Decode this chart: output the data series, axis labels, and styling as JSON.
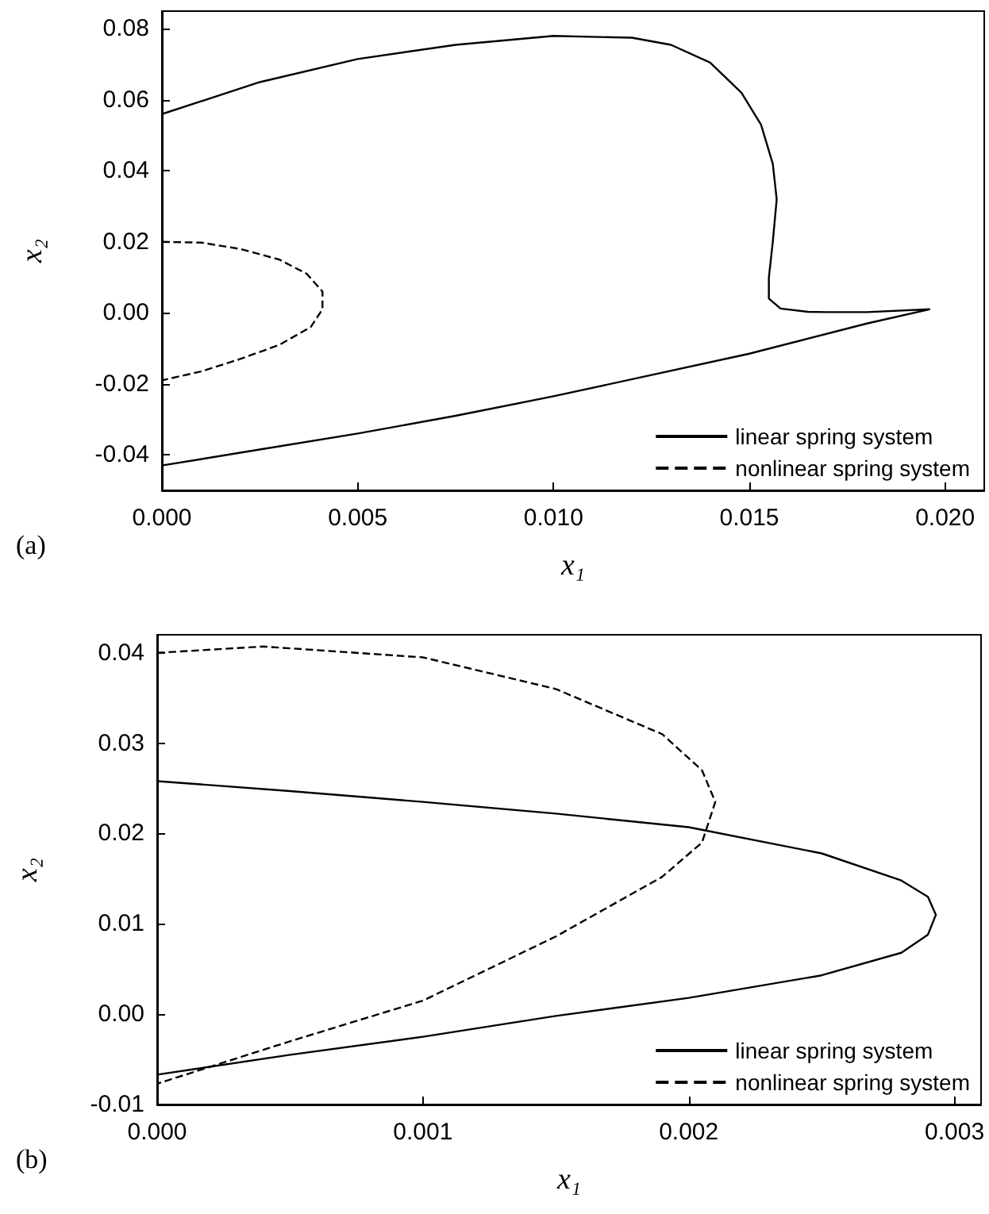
{
  "chart_data": [
    {
      "type": "line",
      "xlabel": "x₁",
      "ylabel": "x₂",
      "annotations": [
        "(a)"
      ],
      "legend": "bottom right",
      "grid": false,
      "marker": "none",
      "xlim": [
        0,
        0.021
      ],
      "xticks": [
        {
          "value": 0,
          "label": "0.000"
        },
        {
          "value": 0.005,
          "label": "0.005"
        },
        {
          "value": 0.01,
          "label": "0.010"
        },
        {
          "value": 0.015,
          "label": "0.015"
        },
        {
          "value": 0.02,
          "label": "0.020"
        }
      ],
      "ylim": [
        -0.05,
        0.085
      ],
      "yticks": [
        {
          "value": -0.04,
          "label": "-0.04"
        },
        {
          "value": -0.02,
          "label": "-0.02"
        },
        {
          "value": 0,
          "label": "0.00"
        },
        {
          "value": 0.02,
          "label": "0.02"
        },
        {
          "value": 0.04,
          "label": "0.04"
        },
        {
          "value": 0.06,
          "label": "0.06"
        },
        {
          "value": 0.08,
          "label": "0.08"
        }
      ],
      "series": [
        {
          "name": "linear spring system",
          "color": "#000000",
          "line_style": "solid",
          "x": [
            0,
            0.0025,
            0.005,
            0.0075,
            0.01,
            0.012,
            0.013,
            0.014,
            0.0148,
            0.0153,
            0.0156,
            0.0157,
            0.0156,
            0.0155,
            0.0155,
            0.0158,
            0.0165,
            0.017,
            0.018,
            0.0196,
            0.018,
            0.015,
            0.0125,
            0.01,
            0.0075,
            0.005,
            0.0025,
            0
          ],
          "values": [
            0.056,
            0.065,
            0.0715,
            0.0755,
            0.078,
            0.0775,
            0.0755,
            0.0705,
            0.062,
            0.053,
            0.042,
            0.032,
            0.02,
            0.01,
            0.004,
            0.0012,
            0.0003,
            0.0002,
            0.0002,
            0.001,
            -0.003,
            -0.0115,
            -0.0175,
            -0.0235,
            -0.029,
            -0.034,
            -0.0385,
            -0.043
          ]
        },
        {
          "name": "nonlinear spring system",
          "color": "#000000",
          "line_style": "dashed",
          "x": [
            0,
            0.001,
            0.002,
            0.003,
            0.0037,
            0.0041,
            0.0041,
            0.0038,
            0.003,
            0.002,
            0.001,
            0
          ],
          "values": [
            0.02,
            0.0198,
            0.018,
            0.015,
            0.011,
            0.006,
            0.001,
            -0.004,
            -0.009,
            -0.013,
            -0.0165,
            -0.019
          ]
        }
      ]
    },
    {
      "type": "line",
      "xlabel": "x₁",
      "ylabel": "x₂",
      "annotations": [
        "(b)"
      ],
      "legend": "bottom right",
      "grid": false,
      "marker": "none",
      "xlim": [
        0,
        0.0031
      ],
      "xticks": [
        {
          "value": 0,
          "label": "0.000"
        },
        {
          "value": 0.001,
          "label": "0.001"
        },
        {
          "value": 0.002,
          "label": "0.002"
        },
        {
          "value": 0.003,
          "label": "0.003"
        }
      ],
      "ylim": [
        -0.01,
        0.042
      ],
      "yticks": [
        {
          "value": -0.01,
          "label": "-0.01"
        },
        {
          "value": 0,
          "label": "0.00"
        },
        {
          "value": 0.01,
          "label": "0.01"
        },
        {
          "value": 0.02,
          "label": "0.02"
        },
        {
          "value": 0.03,
          "label": "0.03"
        },
        {
          "value": 0.04,
          "label": "0.04"
        }
      ],
      "series": [
        {
          "name": "linear spring system",
          "color": "#000000",
          "line_style": "solid",
          "x": [
            0,
            0.0005,
            0.001,
            0.0015,
            0.002,
            0.0025,
            0.0028,
            0.0029,
            0.00293,
            0.0029,
            0.0028,
            0.0025,
            0.002,
            0.0015,
            0.001,
            0.0005,
            0
          ],
          "values": [
            0.0258,
            0.0247,
            0.0235,
            0.0222,
            0.0207,
            0.0178,
            0.0148,
            0.013,
            0.011,
            0.0088,
            0.0068,
            0.0043,
            0.0018,
            -0.0002,
            -0.0025,
            -0.0045,
            -0.0067
          ]
        },
        {
          "name": "nonlinear spring system",
          "color": "#000000",
          "line_style": "dashed",
          "x": [
            0,
            0.0004,
            0.001,
            0.0015,
            0.0019,
            0.00205,
            0.0021,
            0.00205,
            0.0019,
            0.0015,
            0.001,
            0.0005,
            0
          ],
          "values": [
            0.04,
            0.0407,
            0.0395,
            0.036,
            0.031,
            0.027,
            0.0235,
            0.019,
            0.0152,
            0.0086,
            0.0015,
            -0.003,
            -0.0077
          ]
        }
      ]
    }
  ]
}
